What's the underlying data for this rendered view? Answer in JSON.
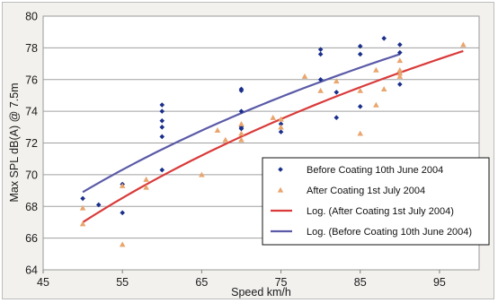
{
  "chart_data": {
    "type": "scatter",
    "title": "",
    "xlabel": "Speed km/h",
    "ylabel": "Max SPL dB(A) @ 7.5m",
    "xlim": [
      45,
      100
    ],
    "ylim": [
      64,
      80
    ],
    "x_ticks": [
      45,
      55,
      65,
      75,
      85,
      95
    ],
    "y_ticks": [
      64,
      66,
      68,
      70,
      72,
      74,
      76,
      78,
      80
    ],
    "grid": "horizontal",
    "legend_position": "bottom-right",
    "series": [
      {
        "name": "Before Coating 10th June 2004",
        "kind": "points",
        "marker": "diamond",
        "color": "#1a2f8c",
        "points": [
          [
            50,
            68.5
          ],
          [
            52,
            68.1
          ],
          [
            55,
            69.4
          ],
          [
            55,
            67.6
          ],
          [
            60,
            74.4
          ],
          [
            60,
            74.0
          ],
          [
            60,
            73.4
          ],
          [
            60,
            73.0
          ],
          [
            60,
            72.4
          ],
          [
            60,
            70.3
          ],
          [
            70,
            75.4
          ],
          [
            70,
            75.3
          ],
          [
            70,
            74.0
          ],
          [
            70,
            73.0
          ],
          [
            70,
            72.9
          ],
          [
            75,
            73.2
          ],
          [
            75,
            72.7
          ],
          [
            80,
            77.9
          ],
          [
            80,
            77.6
          ],
          [
            80,
            76.0
          ],
          [
            82,
            75.2
          ],
          [
            82,
            73.6
          ],
          [
            85,
            78.1
          ],
          [
            85,
            77.6
          ],
          [
            85,
            74.3
          ],
          [
            88,
            78.6
          ],
          [
            90,
            78.2
          ],
          [
            90,
            77.7
          ],
          [
            90,
            76.5
          ],
          [
            90,
            75.7
          ]
        ]
      },
      {
        "name": "After Coating 1st July 2004",
        "kind": "points",
        "marker": "triangle",
        "color": "#e9a56e",
        "points": [
          [
            50,
            67.9
          ],
          [
            50,
            66.9
          ],
          [
            55,
            69.3
          ],
          [
            55,
            65.6
          ],
          [
            58,
            69.7
          ],
          [
            58,
            69.2
          ],
          [
            65,
            70.0
          ],
          [
            67,
            72.8
          ],
          [
            68,
            72.2
          ],
          [
            70,
            73.2
          ],
          [
            70,
            72.6
          ],
          [
            70,
            72.2
          ],
          [
            74,
            73.6
          ],
          [
            75,
            73.5
          ],
          [
            75,
            73.0
          ],
          [
            78,
            76.2
          ],
          [
            80,
            75.3
          ],
          [
            82,
            75.9
          ],
          [
            85,
            72.6
          ],
          [
            85,
            75.3
          ],
          [
            87,
            76.6
          ],
          [
            87,
            74.4
          ],
          [
            88,
            75.4
          ],
          [
            90,
            77.2
          ],
          [
            90,
            76.6
          ],
          [
            90,
            76.4
          ],
          [
            90,
            76.2
          ],
          [
            98,
            78.2
          ]
        ]
      },
      {
        "name": "Log. (After Coating 1st July 2004)",
        "kind": "trendline",
        "fit": "log",
        "color": "#d93a3a",
        "x_range": [
          50,
          98
        ],
        "y_range": [
          67.0,
          77.8
        ]
      },
      {
        "name": "Log. (Before Coating 10th June 2004)",
        "kind": "trendline",
        "fit": "log",
        "color": "#5a5aa8",
        "x_range": [
          50,
          90
        ],
        "y_range": [
          68.9,
          77.6
        ]
      }
    ]
  }
}
